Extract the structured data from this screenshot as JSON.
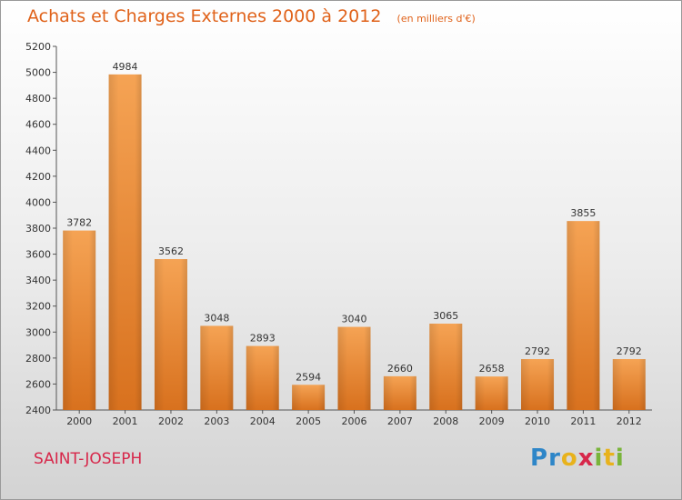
{
  "header": {
    "title": "Achats et Charges Externes 2000 à 2012",
    "unit": "(en milliers d'€)"
  },
  "footer": {
    "place": "SAINT-JOSEPH",
    "logo": {
      "letters": [
        "P",
        "r",
        "o",
        "x",
        "i",
        "t",
        "i"
      ],
      "colors": [
        "#2e86c8",
        "#2e86c8",
        "#e8b21c",
        "#d7274a",
        "#79b43a",
        "#e8b21c",
        "#79b43a"
      ]
    }
  },
  "colors": {
    "bar": "#f0953c",
    "title": "#e0621a",
    "place": "#d7274a"
  },
  "chart_data": {
    "type": "bar",
    "title": "Achats et Charges Externes 2000 à 2012",
    "subtitle": "(en milliers d'€)",
    "xlabel": "",
    "ylabel": "",
    "categories": [
      "2000",
      "2001",
      "2002",
      "2003",
      "2004",
      "2005",
      "2006",
      "2007",
      "2008",
      "2009",
      "2010",
      "2011",
      "2012"
    ],
    "values": [
      3782,
      4984,
      3562,
      3048,
      2893,
      2594,
      3040,
      2660,
      3065,
      2658,
      2792,
      3855,
      2792
    ],
    "ylim": [
      2400,
      5200
    ],
    "yticks": [
      2400,
      2600,
      2800,
      3000,
      3200,
      3400,
      3600,
      3800,
      4000,
      4200,
      4400,
      4600,
      4800,
      5000,
      5200
    ],
    "grid": false,
    "legend": "none"
  }
}
